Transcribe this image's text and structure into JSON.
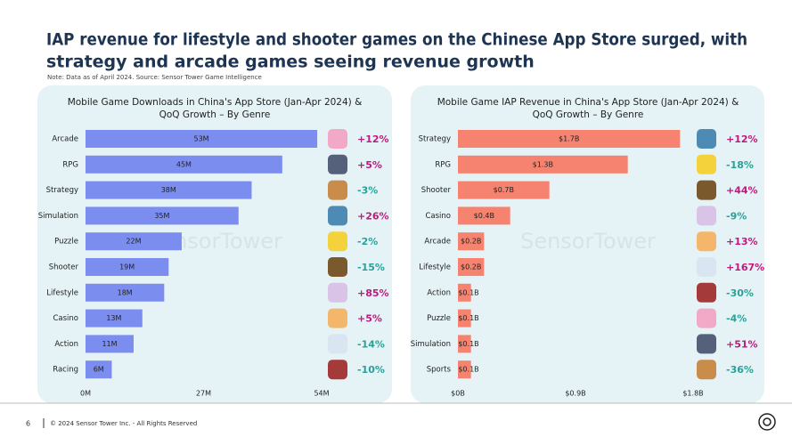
{
  "title": "IAP revenue for lifestyle and shooter games on the Chinese App Store surged, with strategy and arcade games seeing revenue growth",
  "note": "Note: Data as of April 2024. Source: Sensor Tower Game Intelligence",
  "page_number": "6",
  "footer": "© 2024 Sensor Tower Inc. - All Rights Reserved",
  "watermark": "SensorTower",
  "chart_data": [
    {
      "type": "hbar",
      "title": "Mobile Game Downloads in China's App Store (Jan-Apr 2024) & QoQ Growth – By Genre",
      "categories": [
        "Arcade",
        "RPG",
        "Strategy",
        "Simulation",
        "Puzzle",
        "Shooter",
        "Lifestyle",
        "Casino",
        "Action",
        "Racing"
      ],
      "values": [
        53,
        45,
        38,
        35,
        22,
        19,
        18,
        13,
        11,
        6
      ],
      "value_labels": [
        "53M",
        "45M",
        "38M",
        "35M",
        "22M",
        "19M",
        "18M",
        "13M",
        "11M",
        "6M"
      ],
      "color": "#7b8ef0",
      "xlim": [
        0,
        54
      ],
      "xticks": [
        {
          "value": 0,
          "label": "0M"
        },
        {
          "value": 27,
          "label": "27M"
        },
        {
          "value": 54,
          "label": "54M"
        }
      ],
      "growth": {
        "values": [
          12,
          5,
          -3,
          26,
          -2,
          -15,
          85,
          5,
          -14,
          -10
        ],
        "value_labels": [
          "+12%",
          "+5%",
          "-3%",
          "+26%",
          "-2%",
          "-15%",
          "+85%",
          "+5%",
          "-14%",
          "-10%"
        ]
      }
    },
    {
      "type": "hbar",
      "title": "Mobile Game IAP Revenue in China's App Store (Jan-Apr 2024) & QoQ Growth – By Genre",
      "categories": [
        "Strategy",
        "RPG",
        "Shooter",
        "Casino",
        "Arcade",
        "Lifestyle",
        "Action",
        "Puzzle",
        "Simulation",
        "Sports"
      ],
      "values": [
        1.7,
        1.3,
        0.7,
        0.4,
        0.2,
        0.2,
        0.1,
        0.1,
        0.1,
        0.1
      ],
      "value_labels": [
        "$1.7B",
        "$1.3B",
        "$0.7B",
        "$0.4B",
        "$0.2B",
        "$0.2B",
        "$0.1B",
        "$0.1B",
        "$0.1B",
        "$0.1B"
      ],
      "color": "#f5836f",
      "xlim": [
        0,
        1.8
      ],
      "xticks": [
        {
          "value": 0,
          "label": "$0B"
        },
        {
          "value": 0.9,
          "label": "$0.9B"
        },
        {
          "value": 1.8,
          "label": "$1.8B"
        }
      ],
      "growth": {
        "values": [
          12,
          -18,
          44,
          -9,
          13,
          167,
          -30,
          -4,
          51,
          -36
        ],
        "value_labels": [
          "+12%",
          "-18%",
          "+44%",
          "-9%",
          "+13%",
          "+167%",
          "-30%",
          "-4%",
          "+51%",
          "-36%"
        ]
      }
    }
  ]
}
